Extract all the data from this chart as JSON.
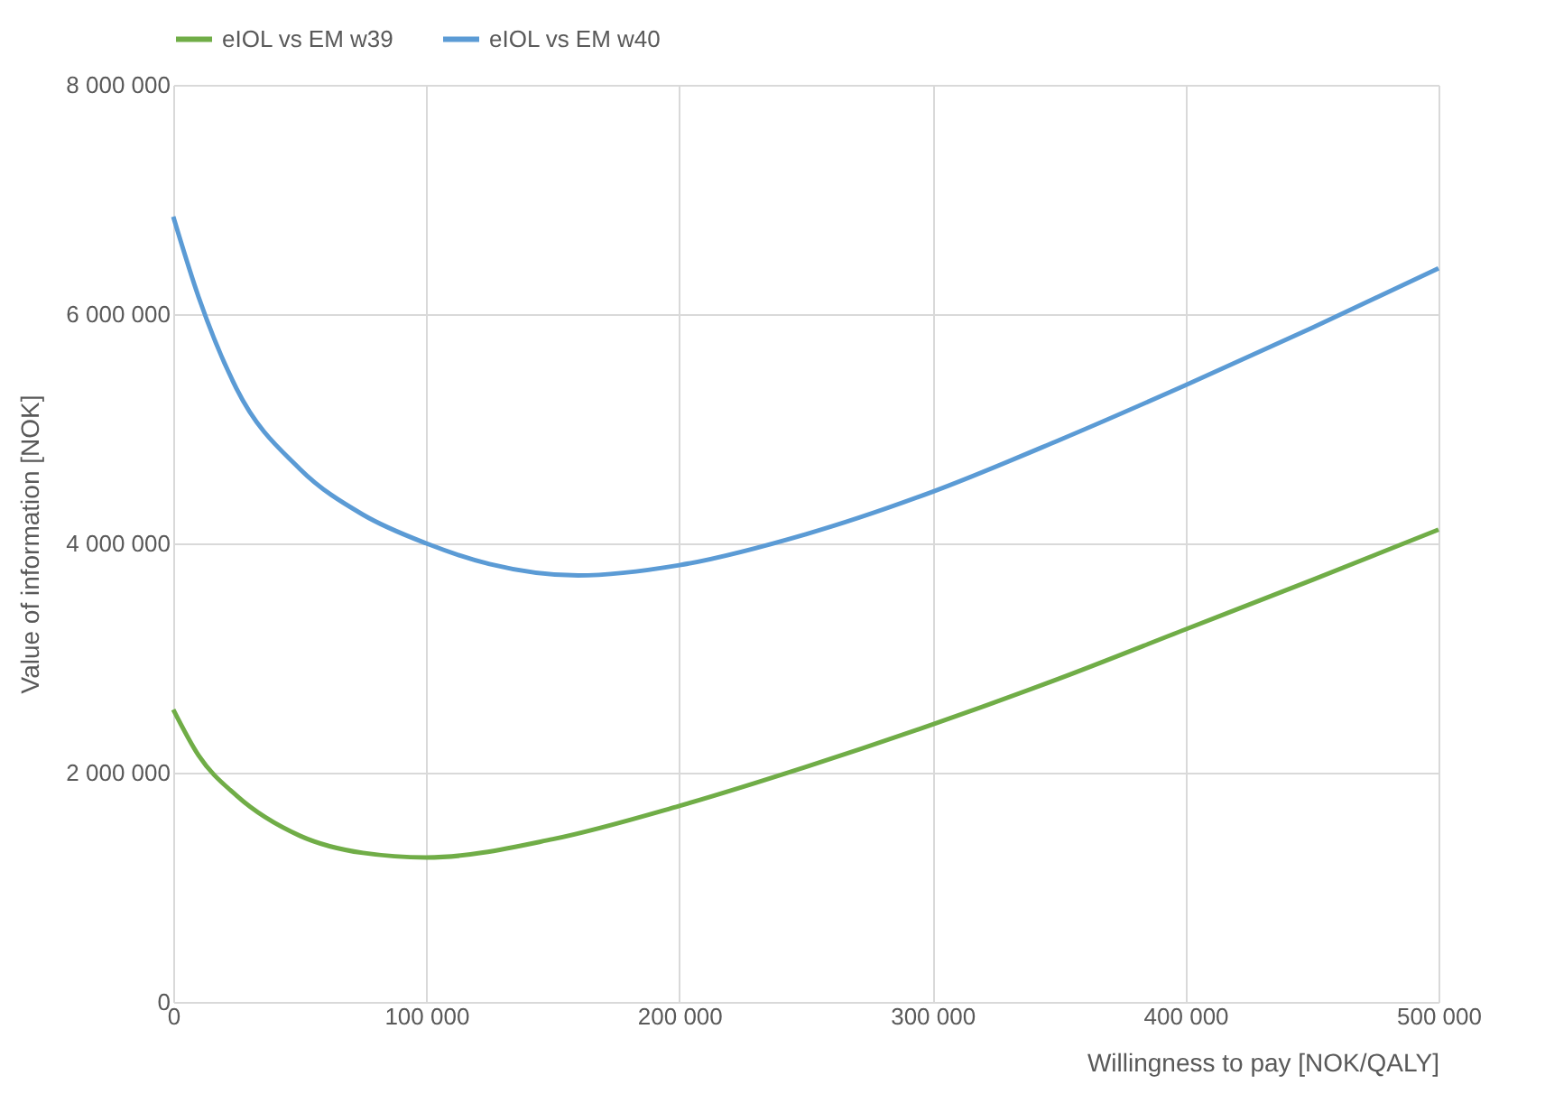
{
  "chart_data": {
    "type": "line",
    "xlabel": "Willingness to pay [NOK/QALY]",
    "ylabel": "Value of information [NOK]",
    "series": [
      {
        "name": "eIOL vs EM w39",
        "color": "#70ad47",
        "x": [
          0,
          10000,
          25000,
          50000,
          75000,
          100000,
          150000,
          200000,
          250000,
          300000,
          350000,
          400000,
          450000,
          500000
        ],
        "values": [
          2550000,
          2150000,
          1800000,
          1450000,
          1300000,
          1260000,
          1420000,
          1710000,
          2050000,
          2420000,
          2820000,
          3250000,
          3680000,
          4120000
        ]
      },
      {
        "name": "eIOL vs EM w40",
        "color": "#5b9bd5",
        "x": [
          0,
          10000,
          25000,
          50000,
          75000,
          100000,
          125000,
          160000,
          200000,
          250000,
          300000,
          350000,
          400000,
          450000,
          500000
        ],
        "values": [
          6850000,
          6150000,
          5350000,
          4650000,
          4250000,
          4000000,
          3820000,
          3720000,
          3810000,
          4080000,
          4450000,
          4900000,
          5380000,
          5880000,
          6400000
        ]
      }
    ],
    "xlim": [
      0,
      500000
    ],
    "ylim": [
      0,
      8000000
    ],
    "xticks": [
      0,
      {
        "value": 100000,
        "label": "100 000"
      },
      {
        "value": 200000,
        "label": "200 000"
      },
      {
        "value": 300000,
        "label": "300 000"
      },
      {
        "value": 400000,
        "label": "400 000"
      },
      {
        "value": 500000,
        "label": "500 000"
      }
    ],
    "yticks": [
      0,
      {
        "value": 2000000,
        "label": "2 000 000"
      },
      {
        "value": 4000000,
        "label": "4 000 000"
      },
      {
        "value": 6000000,
        "label": "6 000 000"
      },
      {
        "value": 8000000,
        "label": "8 000 000"
      }
    ],
    "grid": true,
    "legend": "top",
    "marker": "none",
    "line_style": "solid"
  }
}
